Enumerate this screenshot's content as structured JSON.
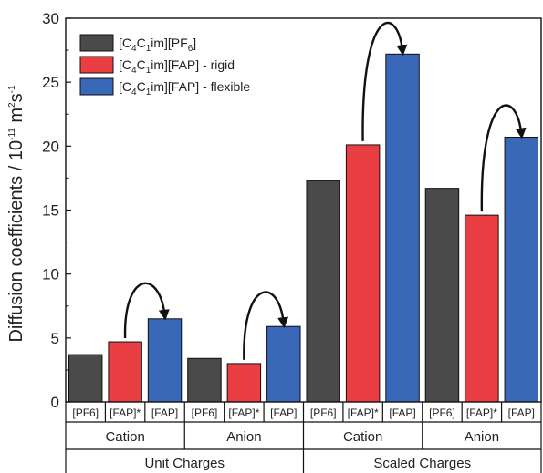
{
  "chart_data": {
    "type": "bar",
    "ylabel": "Diffusion coefficients / 10",
    "ylabel_exp": "-11",
    "ylabel_unit": " m",
    "ylabel_unit_exp": "2",
    "ylabel_tail": "s",
    "ylabel_tail_exp": "-1",
    "ylim": [
      0,
      30
    ],
    "yticks": [
      "0",
      "5",
      "10",
      "15",
      "20",
      "25",
      "30"
    ],
    "categories": [
      "[PF6]",
      "[FAP]*",
      "[FAP]",
      "[PF6]",
      "[FAP]*",
      "[FAP]",
      "[PF6]",
      "[FAP]*",
      "[FAP]",
      "[PF6]",
      "[FAP]*",
      "[FAP]"
    ],
    "values": [
      3.7,
      4.7,
      6.5,
      3.4,
      3.0,
      5.9,
      17.3,
      20.1,
      27.2,
      16.7,
      14.6,
      20.7
    ],
    "series_index": [
      0,
      1,
      2,
      0,
      1,
      2,
      0,
      1,
      2,
      0,
      1,
      2
    ],
    "ion_groups": [
      "Cation",
      "Anion",
      "Cation",
      "Anion"
    ],
    "charge_groups": [
      "Unit Charges",
      "Scaled Charges"
    ],
    "legend": {
      "placement": "top-left",
      "entries": [
        {
          "pre": "[C",
          "s1": "4",
          "mid": "C",
          "s2": "1",
          "post": "im][PF",
          "s3": "6",
          "tail": "]"
        },
        {
          "pre": "[C",
          "s1": "4",
          "mid": "C",
          "s2": "1",
          "post": "im][FAP] - rigid",
          "s3": "",
          "tail": ""
        },
        {
          "pre": "[C",
          "s1": "4",
          "mid": "C",
          "s2": "1",
          "post": "im][FAP] - flexible",
          "s3": "",
          "tail": ""
        }
      ]
    },
    "colors": [
      "#4a4a4a",
      "#ea3f42",
      "#3a68b8"
    ],
    "arrows": [
      [
        1,
        2
      ],
      [
        4,
        5
      ],
      [
        7,
        8
      ],
      [
        10,
        11
      ]
    ],
    "grid": false
  }
}
